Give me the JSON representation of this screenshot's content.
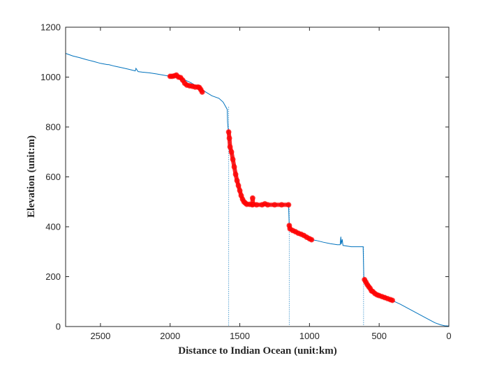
{
  "chart_data": {
    "type": "line",
    "title": "",
    "xlabel": "Distance to Indian Ocean (unit:km)",
    "ylabel": "Elevation (unit:m)",
    "xlim": [
      2750,
      0
    ],
    "ylim": [
      0,
      1200
    ],
    "x_reversed": true,
    "grid": false,
    "legend": "none",
    "xticks": [
      2500,
      2000,
      1500,
      1000,
      500,
      0
    ],
    "yticks": [
      0,
      200,
      400,
      600,
      800,
      1000,
      1200
    ],
    "profile_color": "#0072BD",
    "highlight_color": "#FF0000",
    "series": [
      {
        "role": "elevation-profile",
        "points": [
          [
            2750,
            1095
          ],
          [
            2700,
            1085
          ],
          [
            2650,
            1078
          ],
          [
            2600,
            1070
          ],
          [
            2550,
            1063
          ],
          [
            2500,
            1055
          ],
          [
            2450,
            1050
          ],
          [
            2440,
            1050
          ],
          [
            2400,
            1044
          ],
          [
            2350,
            1038
          ],
          [
            2300,
            1032
          ],
          [
            2250,
            1025
          ],
          [
            2245,
            1035
          ],
          [
            2230,
            1022
          ],
          [
            2200,
            1020
          ],
          [
            2150,
            1017
          ],
          [
            2100,
            1013
          ],
          [
            2050,
            1008
          ],
          [
            2000,
            1003
          ],
          [
            1950,
            998
          ],
          [
            1900,
            990
          ],
          [
            1850,
            977
          ],
          [
            1800,
            960
          ],
          [
            1750,
            942
          ],
          [
            1700,
            925
          ],
          [
            1650,
            915
          ],
          [
            1620,
            900
          ],
          [
            1600,
            880
          ],
          [
            1590,
            870
          ],
          [
            1588,
            820
          ],
          [
            1585,
            800
          ],
          [
            1580,
            780
          ],
          [
            1570,
            720
          ],
          [
            1550,
            670
          ],
          [
            1520,
            590
          ],
          [
            1500,
            540
          ],
          [
            1480,
            510
          ],
          [
            1460,
            495
          ],
          [
            1440,
            490
          ],
          [
            1400,
            488
          ],
          [
            1300,
            488
          ],
          [
            1200,
            488
          ],
          [
            1150,
            488
          ],
          [
            1145,
            400
          ],
          [
            1140,
            390
          ],
          [
            1120,
            385
          ],
          [
            1080,
            375
          ],
          [
            1050,
            368
          ],
          [
            1000,
            350
          ],
          [
            950,
            345
          ],
          [
            900,
            338
          ],
          [
            850,
            332
          ],
          [
            800,
            328
          ],
          [
            780,
            328
          ],
          [
            775,
            360
          ],
          [
            772,
            330
          ],
          [
            765,
            350
          ],
          [
            760,
            325
          ],
          [
            700,
            320
          ],
          [
            650,
            320
          ],
          [
            615,
            320
          ],
          [
            612,
            250
          ],
          [
            610,
            200
          ],
          [
            605,
            185
          ],
          [
            580,
            165
          ],
          [
            550,
            140
          ],
          [
            500,
            125
          ],
          [
            450,
            115
          ],
          [
            400,
            103
          ],
          [
            350,
            90
          ],
          [
            300,
            75
          ],
          [
            250,
            60
          ],
          [
            200,
            45
          ],
          [
            150,
            30
          ],
          [
            100,
            15
          ],
          [
            60,
            7
          ],
          [
            30,
            3
          ],
          [
            0,
            2
          ]
        ]
      },
      {
        "role": "highlighted-segment",
        "points": [
          [
            2000,
            1003
          ],
          [
            1985,
            1003
          ],
          [
            1970,
            1005
          ],
          [
            1955,
            1008
          ],
          [
            1940,
            1000
          ],
          [
            1925,
            998
          ],
          [
            1910,
            988
          ],
          [
            1895,
            975
          ],
          [
            1880,
            968
          ],
          [
            1860,
            965
          ],
          [
            1840,
            963
          ],
          [
            1820,
            960
          ],
          [
            1800,
            960
          ],
          [
            1790,
            958
          ],
          [
            1780,
            950
          ],
          [
            1770,
            940
          ]
        ]
      },
      {
        "role": "highlighted-segment",
        "points": [
          [
            1580,
            780
          ],
          [
            1575,
            755
          ],
          [
            1570,
            720
          ],
          [
            1560,
            700
          ],
          [
            1550,
            670
          ],
          [
            1540,
            640
          ],
          [
            1530,
            610
          ],
          [
            1520,
            585
          ],
          [
            1510,
            565
          ],
          [
            1500,
            545
          ],
          [
            1490,
            525
          ],
          [
            1480,
            510
          ],
          [
            1470,
            500
          ],
          [
            1460,
            495
          ],
          [
            1450,
            490
          ],
          [
            1430,
            490
          ],
          [
            1410,
            488
          ],
          [
            1408,
            515
          ],
          [
            1405,
            490
          ],
          [
            1380,
            488
          ],
          [
            1340,
            488
          ],
          [
            1320,
            492
          ],
          [
            1300,
            488
          ],
          [
            1250,
            488
          ],
          [
            1200,
            488
          ],
          [
            1150,
            488
          ]
        ]
      },
      {
        "role": "highlighted-segment",
        "points": [
          [
            1145,
            405
          ],
          [
            1140,
            392
          ],
          [
            1120,
            385
          ],
          [
            1100,
            380
          ],
          [
            1080,
            374
          ],
          [
            1060,
            370
          ],
          [
            1040,
            365
          ],
          [
            1020,
            358
          ],
          [
            1000,
            352
          ],
          [
            985,
            348
          ]
        ]
      },
      {
        "role": "highlighted-segment",
        "points": [
          [
            605,
            188
          ],
          [
            595,
            178
          ],
          [
            585,
            168
          ],
          [
            575,
            160
          ],
          [
            565,
            153
          ],
          [
            555,
            143
          ],
          [
            545,
            140
          ],
          [
            530,
            132
          ],
          [
            515,
            127
          ],
          [
            500,
            124
          ],
          [
            480,
            120
          ],
          [
            460,
            116
          ],
          [
            440,
            112
          ],
          [
            420,
            108
          ],
          [
            405,
            105
          ]
        ]
      }
    ],
    "reference_lines": [
      {
        "x": 1580,
        "y_top": 880
      },
      {
        "x": 1145,
        "y_top": 488
      },
      {
        "x": 612,
        "y_top": 320
      }
    ]
  }
}
